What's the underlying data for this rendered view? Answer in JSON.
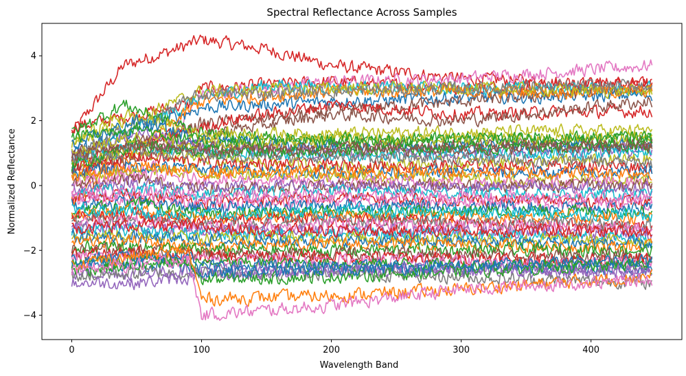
{
  "chart_data": {
    "type": "line",
    "title": "Spectral Reflectance Across Samples",
    "xlabel": "Wavelength Band",
    "ylabel": "Normalized Reflectance",
    "xlim": [
      -23,
      470
    ],
    "ylim": [
      -4.75,
      5.0
    ],
    "x_ticks": [
      0,
      100,
      200,
      300,
      400
    ],
    "x_tick_labels": [
      "0",
      "100",
      "200",
      "300",
      "400"
    ],
    "y_ticks": [
      -4,
      -2,
      0,
      2,
      4
    ],
    "y_tick_labels": [
      "−4",
      "−2",
      "0",
      "2",
      "4"
    ],
    "n_bands": 448,
    "grid": false,
    "legend": "none",
    "palette": [
      "#1f77b4",
      "#ff7f0e",
      "#2ca02c",
      "#d62728",
      "#9467bd",
      "#8c564b",
      "#e377c2",
      "#7f7f7f",
      "#bcbd22",
      "#17becf"
    ],
    "noise_amplitude": 0.18,
    "series": [
      {
        "color": "#d62728",
        "x": [
          0,
          40,
          80,
          100,
          150,
          200,
          300,
          447
        ],
        "y": [
          1.6,
          3.7,
          4.2,
          4.5,
          4.2,
          3.7,
          3.3,
          3.1
        ]
      },
      {
        "color": "#d62728",
        "x": [
          0,
          90,
          100,
          200,
          300,
          447
        ],
        "y": [
          1.8,
          2.5,
          3.0,
          3.2,
          3.0,
          3.2
        ]
      },
      {
        "color": "#e377c2",
        "x": [
          0,
          60,
          100,
          200,
          300,
          447
        ],
        "y": [
          0.3,
          0.5,
          2.8,
          3.2,
          3.3,
          3.7
        ]
      },
      {
        "color": "#17becf",
        "x": [
          0,
          100,
          150,
          250,
          447
        ],
        "y": [
          0.8,
          2.7,
          3.1,
          3.0,
          3.0
        ]
      },
      {
        "color": "#1f77b4",
        "x": [
          0,
          100,
          200,
          300,
          447
        ],
        "y": [
          1.0,
          2.4,
          2.6,
          2.7,
          2.8
        ]
      },
      {
        "color": "#8c564b",
        "x": [
          0,
          100,
          200,
          300,
          447
        ],
        "y": [
          0.5,
          1.9,
          2.3,
          2.6,
          3.0
        ]
      },
      {
        "color": "#ff7f0e",
        "x": [
          0,
          100,
          200,
          300,
          447
        ],
        "y": [
          -0.5,
          2.6,
          2.9,
          2.9,
          2.9
        ]
      },
      {
        "color": "#bcbd22",
        "x": [
          0,
          100,
          200,
          300,
          447
        ],
        "y": [
          1.3,
          2.9,
          3.0,
          3.0,
          2.9
        ]
      },
      {
        "color": "#d62728",
        "x": [
          0,
          120,
          200,
          300,
          447
        ],
        "y": [
          0.7,
          2.0,
          2.5,
          2.2,
          2.3
        ]
      },
      {
        "color": "#8c564b",
        "x": [
          0,
          120,
          200,
          300,
          447
        ],
        "y": [
          0.3,
          1.7,
          2.2,
          2.0,
          2.6
        ]
      },
      {
        "color": "#7f7f7f",
        "x": [
          0,
          100,
          200,
          300,
          447
        ],
        "y": [
          0.9,
          2.8,
          2.9,
          3.0,
          3.1
        ]
      },
      {
        "color": "#2ca02c",
        "x": [
          0,
          40,
          100,
          200,
          447
        ],
        "y": [
          1.6,
          2.5,
          1.6,
          1.4,
          1.4
        ]
      },
      {
        "color": "#bcbd22",
        "x": [
          0,
          40,
          100,
          200,
          447
        ],
        "y": [
          1.3,
          2.2,
          1.6,
          1.6,
          1.7
        ]
      },
      {
        "color": "#1f77b4",
        "x": [
          0,
          50,
          100,
          200,
          447
        ],
        "y": [
          1.2,
          2.0,
          1.4,
          1.2,
          1.2
        ]
      },
      {
        "color": "#9467bd",
        "x": [
          0,
          50,
          100,
          200,
          447
        ],
        "y": [
          0.9,
          1.6,
          1.2,
          1.0,
          1.1
        ]
      },
      {
        "color": "#8c564b",
        "x": [
          0,
          50,
          100,
          200,
          447
        ],
        "y": [
          1.0,
          1.4,
          1.1,
          1.2,
          1.3
        ]
      },
      {
        "color": "#17becf",
        "x": [
          0,
          50,
          100,
          200,
          447
        ],
        "y": [
          0.8,
          1.2,
          1.0,
          0.9,
          1.0
        ]
      },
      {
        "color": "#bcbd22",
        "x": [
          0,
          50,
          100,
          200,
          447
        ],
        "y": [
          0.7,
          1.0,
          0.8,
          0.6,
          0.8
        ]
      },
      {
        "color": "#d62728",
        "x": [
          0,
          50,
          100,
          200,
          447
        ],
        "y": [
          0.5,
          0.9,
          0.7,
          0.6,
          0.6
        ]
      },
      {
        "color": "#7f7f7f",
        "x": [
          0,
          50,
          100,
          200,
          447
        ],
        "y": [
          0.8,
          1.1,
          0.9,
          0.9,
          0.7
        ]
      },
      {
        "color": "#1f77b4",
        "x": [
          0,
          50,
          100,
          200,
          447
        ],
        "y": [
          0.4,
          0.6,
          0.5,
          0.4,
          0.4
        ]
      },
      {
        "color": "#2ca02c",
        "x": [
          0,
          50,
          100,
          200,
          447
        ],
        "y": [
          0.6,
          1.3,
          1.0,
          1.1,
          1.2
        ]
      },
      {
        "color": "#bcbd22",
        "x": [
          0,
          50,
          100,
          200,
          447
        ],
        "y": [
          0.2,
          0.5,
          0.4,
          0.3,
          0.1
        ]
      },
      {
        "color": "#e377c2",
        "x": [
          0,
          50,
          100,
          200,
          447
        ],
        "y": [
          0.0,
          0.3,
          0.2,
          0.1,
          0.1
        ]
      },
      {
        "color": "#ff7f0e",
        "x": [
          0,
          50,
          100,
          200,
          447
        ],
        "y": [
          0.3,
          0.6,
          0.4,
          0.4,
          0.4
        ]
      },
      {
        "color": "#8c564b",
        "x": [
          0,
          50,
          100,
          200,
          447
        ],
        "y": [
          0.0,
          0.2,
          -0.1,
          0.0,
          0.0
        ]
      },
      {
        "color": "#9467bd",
        "x": [
          0,
          50,
          100,
          200,
          447
        ],
        "y": [
          -0.1,
          0.1,
          -0.1,
          0.0,
          -0.1
        ]
      },
      {
        "color": "#17becf",
        "x": [
          0,
          50,
          100,
          200,
          447
        ],
        "y": [
          -0.2,
          -0.1,
          -0.3,
          -0.2,
          -0.3
        ]
      },
      {
        "color": "#d62728",
        "x": [
          0,
          50,
          100,
          200,
          447
        ],
        "y": [
          -0.4,
          -0.3,
          -0.5,
          -0.4,
          -0.5
        ]
      },
      {
        "color": "#e377c2",
        "x": [
          0,
          50,
          100,
          200,
          447
        ],
        "y": [
          -0.5,
          -0.4,
          -0.6,
          -0.5,
          -0.6
        ]
      },
      {
        "color": "#1f77b4",
        "x": [
          0,
          50,
          100,
          200,
          447
        ],
        "y": [
          -0.6,
          -0.5,
          -0.7,
          -0.6,
          -0.7
        ]
      },
      {
        "color": "#2ca02c",
        "x": [
          0,
          50,
          100,
          200,
          447
        ],
        "y": [
          -0.8,
          -0.6,
          -0.9,
          -0.8,
          -0.8
        ]
      },
      {
        "color": "#ff7f0e",
        "x": [
          0,
          50,
          100,
          200,
          447
        ],
        "y": [
          -0.9,
          -0.8,
          -1.0,
          -0.9,
          -1.0
        ]
      },
      {
        "color": "#d62728",
        "x": [
          0,
          50,
          100,
          200,
          447
        ],
        "y": [
          -1.0,
          -0.9,
          -1.1,
          -1.0,
          -1.3
        ]
      },
      {
        "color": "#7f7f7f",
        "x": [
          0,
          50,
          100,
          200,
          447
        ],
        "y": [
          -1.1,
          -1.0,
          -1.2,
          -1.1,
          -1.2
        ]
      },
      {
        "color": "#e377c2",
        "x": [
          0,
          50,
          100,
          200,
          447
        ],
        "y": [
          -1.2,
          -1.1,
          -1.3,
          -1.2,
          -1.3
        ]
      },
      {
        "color": "#9467bd",
        "x": [
          0,
          50,
          100,
          200,
          447
        ],
        "y": [
          -1.3,
          -1.3,
          -1.4,
          -1.4,
          -1.5
        ]
      },
      {
        "color": "#17becf",
        "x": [
          0,
          50,
          100,
          200,
          447
        ],
        "y": [
          -1.4,
          -1.4,
          -1.5,
          -1.5,
          -1.6
        ]
      },
      {
        "color": "#bcbd22",
        "x": [
          0,
          50,
          100,
          200,
          447
        ],
        "y": [
          -1.5,
          -1.5,
          -1.6,
          -1.6,
          -1.7
        ]
      },
      {
        "color": "#1f77b4",
        "x": [
          0,
          50,
          100,
          200,
          447
        ],
        "y": [
          -1.6,
          -1.6,
          -1.7,
          -1.7,
          -1.8
        ]
      },
      {
        "color": "#ff7f0e",
        "x": [
          0,
          50,
          100,
          200,
          447
        ],
        "y": [
          -1.8,
          -1.7,
          -1.9,
          -1.8,
          -1.9
        ]
      },
      {
        "color": "#2ca02c",
        "x": [
          0,
          50,
          100,
          200,
          447
        ],
        "y": [
          -1.9,
          -1.9,
          -2.0,
          -2.0,
          -2.0
        ]
      },
      {
        "color": "#8c564b",
        "x": [
          0,
          50,
          100,
          200,
          447
        ],
        "y": [
          -2.0,
          -2.0,
          -2.1,
          -2.1,
          -2.2
        ]
      },
      {
        "color": "#d62728",
        "x": [
          0,
          50,
          100,
          200,
          447
        ],
        "y": [
          -2.1,
          -2.1,
          -2.2,
          -2.2,
          -2.3
        ]
      },
      {
        "color": "#e377c2",
        "x": [
          0,
          50,
          100,
          200,
          447
        ],
        "y": [
          -2.2,
          -2.2,
          -2.3,
          -2.3,
          -2.4
        ]
      },
      {
        "color": "#2ca02c",
        "x": [
          0,
          50,
          100,
          200,
          447
        ],
        "y": [
          -2.4,
          -2.3,
          -2.4,
          -2.4,
          -2.5
        ]
      },
      {
        "color": "#1f77b4",
        "x": [
          0,
          50,
          100,
          200,
          447
        ],
        "y": [
          -2.5,
          -2.4,
          -2.5,
          -2.5,
          -2.6
        ]
      },
      {
        "color": "#9467bd",
        "x": [
          0,
          50,
          100,
          200,
          447
        ],
        "y": [
          -2.7,
          -2.7,
          -2.6,
          -2.6,
          -2.7
        ]
      },
      {
        "color": "#7f7f7f",
        "x": [
          0,
          50,
          100,
          200,
          447
        ],
        "y": [
          -2.8,
          -2.7,
          -2.7,
          -2.7,
          -3.0
        ]
      },
      {
        "color": "#9467bd",
        "x": [
          0,
          50,
          100,
          200,
          447
        ],
        "y": [
          -3.0,
          -3.0,
          -2.8,
          -2.6,
          -2.6
        ]
      },
      {
        "color": "#2ca02c",
        "x": [
          0,
          90,
          100,
          200,
          447
        ],
        "y": [
          -2.6,
          -2.4,
          -2.9,
          -2.8,
          -2.4
        ]
      },
      {
        "color": "#1f77b4",
        "x": [
          0,
          90,
          100,
          200,
          447
        ],
        "y": [
          -2.3,
          -2.1,
          -2.7,
          -2.6,
          -2.3
        ]
      },
      {
        "color": "#ff7f0e",
        "x": [
          0,
          90,
          100,
          200,
          300,
          447
        ],
        "y": [
          -2.4,
          -2.0,
          -3.5,
          -3.4,
          -3.2,
          -2.8
        ]
      },
      {
        "color": "#e377c2",
        "x": [
          0,
          90,
          100,
          200,
          300,
          447
        ],
        "y": [
          -2.6,
          -2.3,
          -4.0,
          -3.7,
          -3.2,
          -2.9
        ]
      },
      {
        "color": "#17becf",
        "x": [
          0,
          50,
          100,
          200,
          447
        ],
        "y": [
          -0.7,
          -0.8,
          -0.9,
          -0.8,
          -0.9
        ]
      },
      {
        "color": "#bcbd22",
        "x": [
          0,
          50,
          100,
          200,
          447
        ],
        "y": [
          1.0,
          1.5,
          1.3,
          1.4,
          1.5
        ]
      },
      {
        "color": "#2ca02c",
        "x": [
          0,
          50,
          100,
          200,
          447
        ],
        "y": [
          1.5,
          1.8,
          1.3,
          1.4,
          1.5
        ]
      },
      {
        "color": "#8c564b",
        "x": [
          0,
          50,
          100,
          200,
          447
        ],
        "y": [
          0.9,
          1.3,
          1.1,
          1.1,
          1.2
        ]
      },
      {
        "color": "#d62728",
        "x": [
          0,
          50,
          100,
          200,
          447
        ],
        "y": [
          -1.3,
          -1.2,
          -1.3,
          -1.4,
          -1.4
        ]
      },
      {
        "color": "#e377c2",
        "x": [
          0,
          50,
          100,
          200,
          447
        ],
        "y": [
          -0.3,
          -0.2,
          -0.3,
          -0.3,
          -0.4
        ]
      }
    ]
  }
}
